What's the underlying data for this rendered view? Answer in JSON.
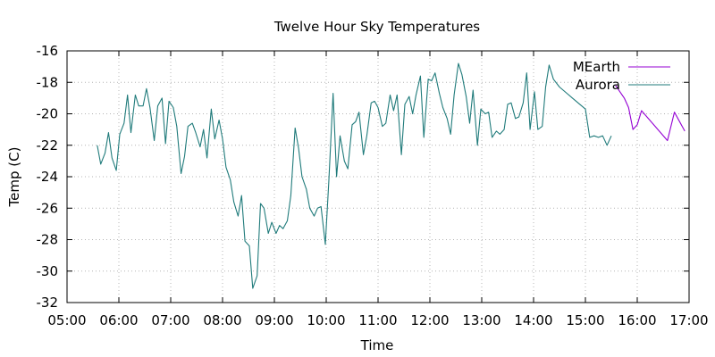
{
  "chart_data": {
    "type": "line",
    "title": "Twelve Hour Sky Temperatures",
    "xlabel": "Time",
    "ylabel": "Temp (C)",
    "xlim": [
      "05:00",
      "17:00"
    ],
    "ylim": [
      -32,
      -16
    ],
    "x_ticks": [
      "05:00",
      "06:00",
      "07:00",
      "08:00",
      "09:00",
      "10:00",
      "11:00",
      "12:00",
      "13:00",
      "14:00",
      "15:00",
      "16:00",
      "17:00"
    ],
    "y_ticks": [
      "-16",
      "-18",
      "-20",
      "-22",
      "-24",
      "-26",
      "-28",
      "-30",
      "-32"
    ],
    "grid": true,
    "legend_position": "top-right",
    "series": [
      {
        "name": "MEarth",
        "color": "#9400d3",
        "points": [
          [
            "15:35",
            -18.2
          ],
          [
            "15:45",
            -19.0
          ],
          [
            "15:50",
            -19.6
          ],
          [
            "15:55",
            -21.0
          ],
          [
            "16:00",
            -20.7
          ],
          [
            "16:05",
            -19.8
          ],
          [
            "16:35",
            -21.7
          ],
          [
            "16:43",
            -19.9
          ],
          [
            "16:55",
            -21.1
          ]
        ]
      },
      {
        "name": "Aurora",
        "color": "#207b7b",
        "points": [
          [
            "05:35",
            -22.0
          ],
          [
            "05:39",
            -23.2
          ],
          [
            "05:44",
            -22.5
          ],
          [
            "05:48",
            -21.2
          ],
          [
            "05:52",
            -22.8
          ],
          [
            "05:57",
            -23.6
          ],
          [
            "06:01",
            -21.3
          ],
          [
            "06:06",
            -20.6
          ],
          [
            "06:10",
            -18.8
          ],
          [
            "06:14",
            -21.2
          ],
          [
            "06:19",
            -18.8
          ],
          [
            "06:23",
            -19.5
          ],
          [
            "06:28",
            -19.5
          ],
          [
            "06:32",
            -18.4
          ],
          [
            "06:36",
            -19.6
          ],
          [
            "06:41",
            -21.7
          ],
          [
            "06:45",
            -19.5
          ],
          [
            "06:50",
            -19.0
          ],
          [
            "06:54",
            -21.9
          ],
          [
            "06:58",
            -19.2
          ],
          [
            "07:03",
            -19.6
          ],
          [
            "07:07",
            -20.8
          ],
          [
            "07:12",
            -23.8
          ],
          [
            "07:16",
            -22.7
          ],
          [
            "07:20",
            -20.8
          ],
          [
            "07:25",
            -20.6
          ],
          [
            "07:29",
            -21.2
          ],
          [
            "07:34",
            -22.1
          ],
          [
            "07:38",
            -21.0
          ],
          [
            "07:42",
            -22.8
          ],
          [
            "07:47",
            -19.7
          ],
          [
            "07:51",
            -21.6
          ],
          [
            "07:56",
            -20.4
          ],
          [
            "08:00",
            -21.6
          ],
          [
            "08:04",
            -23.4
          ],
          [
            "08:09",
            -24.2
          ],
          [
            "08:13",
            -25.6
          ],
          [
            "08:18",
            -26.5
          ],
          [
            "08:22",
            -25.2
          ],
          [
            "08:26",
            -28.1
          ],
          [
            "08:31",
            -28.4
          ],
          [
            "08:35",
            -31.1
          ],
          [
            "08:40",
            -30.3
          ],
          [
            "08:44",
            -25.7
          ],
          [
            "08:48",
            -26.0
          ],
          [
            "08:53",
            -27.6
          ],
          [
            "08:57",
            -26.9
          ],
          [
            "09:02",
            -27.6
          ],
          [
            "09:06",
            -27.1
          ],
          [
            "09:10",
            -27.3
          ],
          [
            "09:15",
            -26.8
          ],
          [
            "09:19",
            -25.2
          ],
          [
            "09:24",
            -20.9
          ],
          [
            "09:28",
            -22.2
          ],
          [
            "09:32",
            -24.0
          ],
          [
            "09:37",
            -24.8
          ],
          [
            "09:41",
            -26.0
          ],
          [
            "09:46",
            -26.5
          ],
          [
            "09:50",
            -26.0
          ],
          [
            "09:54",
            -25.9
          ],
          [
            "09:59",
            -28.3
          ],
          [
            "10:03",
            -24.3
          ],
          [
            "10:08",
            -18.7
          ],
          [
            "10:12",
            -24.0
          ],
          [
            "10:16",
            -21.4
          ],
          [
            "10:21",
            -23.0
          ],
          [
            "10:25",
            -23.5
          ],
          [
            "10:30",
            -20.7
          ],
          [
            "10:34",
            -20.5
          ],
          [
            "10:38",
            -19.9
          ],
          [
            "10:43",
            -22.6
          ],
          [
            "10:47",
            -21.4
          ],
          [
            "10:52",
            -19.3
          ],
          [
            "10:56",
            -19.2
          ],
          [
            "11:00",
            -19.6
          ],
          [
            "11:05",
            -20.8
          ],
          [
            "11:09",
            -20.6
          ],
          [
            "11:14",
            -18.8
          ],
          [
            "11:18",
            -19.8
          ],
          [
            "11:22",
            -18.8
          ],
          [
            "11:27",
            -22.6
          ],
          [
            "11:31",
            -19.4
          ],
          [
            "11:36",
            -18.9
          ],
          [
            "11:40",
            -20.0
          ],
          [
            "11:44",
            -18.8
          ],
          [
            "11:49",
            -17.6
          ],
          [
            "11:53",
            -21.5
          ],
          [
            "11:58",
            -17.8
          ],
          [
            "12:02",
            -17.9
          ],
          [
            "12:06",
            -17.4
          ],
          [
            "12:11",
            -18.7
          ],
          [
            "12:15",
            -19.6
          ],
          [
            "12:20",
            -20.3
          ],
          [
            "12:24",
            -21.3
          ],
          [
            "12:28",
            -18.8
          ],
          [
            "12:33",
            -16.8
          ],
          [
            "12:37",
            -17.5
          ],
          [
            "12:42",
            -18.9
          ],
          [
            "12:46",
            -20.6
          ],
          [
            "12:50",
            -18.5
          ],
          [
            "12:55",
            -22.0
          ],
          [
            "12:59",
            -19.7
          ],
          [
            "13:04",
            -20.0
          ],
          [
            "13:08",
            -19.9
          ],
          [
            "13:12",
            -21.5
          ],
          [
            "13:17",
            -21.1
          ],
          [
            "13:21",
            -21.3
          ],
          [
            "13:26",
            -21.0
          ],
          [
            "13:30",
            -19.4
          ],
          [
            "13:34",
            -19.3
          ],
          [
            "13:39",
            -20.3
          ],
          [
            "13:43",
            -20.2
          ],
          [
            "13:48",
            -19.3
          ],
          [
            "13:52",
            -17.4
          ],
          [
            "13:56",
            -21.0
          ],
          [
            "14:01",
            -18.6
          ],
          [
            "14:05",
            -21.0
          ],
          [
            "14:10",
            -20.8
          ],
          [
            "14:14",
            -18.3
          ],
          [
            "14:18",
            -16.9
          ],
          [
            "14:23",
            -17.8
          ],
          [
            "14:30",
            -18.3
          ],
          [
            "14:45",
            -19.0
          ],
          [
            "15:00",
            -19.7
          ],
          [
            "15:05",
            -21.5
          ],
          [
            "15:10",
            -21.4
          ],
          [
            "15:15",
            -21.5
          ],
          [
            "15:20",
            -21.4
          ],
          [
            "15:25",
            -22.0
          ],
          [
            "15:30",
            -21.4
          ]
        ]
      }
    ]
  }
}
